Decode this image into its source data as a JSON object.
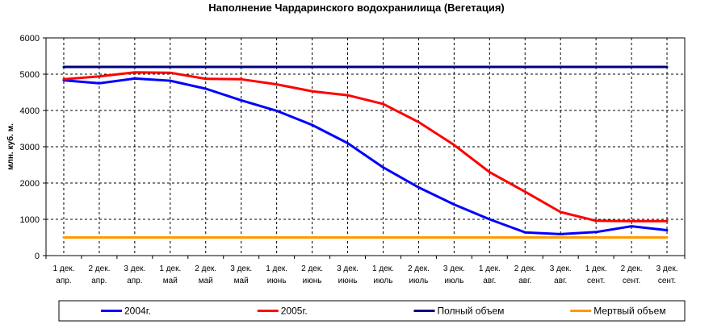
{
  "chart_data": {
    "type": "line",
    "title": "Наполнение Чардаринского водохранилища (Вегетация)",
    "ylabel": "млн. куб. м.",
    "xlabel": "",
    "ylim": [
      0,
      6000
    ],
    "yticks": [
      0,
      1000,
      2000,
      3000,
      4000,
      5000,
      6000
    ],
    "grid": true,
    "legend_position": "bottom",
    "categories": [
      [
        "1 дек.",
        "апр."
      ],
      [
        "2 дек.",
        "апр."
      ],
      [
        "3 дек.",
        "апр."
      ],
      [
        "1 дек.",
        "май"
      ],
      [
        "2 дек.",
        "май"
      ],
      [
        "3 дек.",
        "май"
      ],
      [
        "1 дек.",
        "июнь"
      ],
      [
        "2 дек.",
        "июнь"
      ],
      [
        "3 дек.",
        "июнь"
      ],
      [
        "1 дек.",
        "июль"
      ],
      [
        "2 дек.",
        "июль"
      ],
      [
        "3 дек.",
        "июль"
      ],
      [
        "1 дек.",
        "авг."
      ],
      [
        "2 дек.",
        "авг."
      ],
      [
        "3 дек.",
        "авг."
      ],
      [
        "1 дек.",
        "сент."
      ],
      [
        "2 дек.",
        "сент."
      ],
      [
        "3 дек.",
        "сент."
      ]
    ],
    "series": [
      {
        "name": "2004г.",
        "color": "#0000FF",
        "values": [
          4830,
          4750,
          4880,
          4820,
          4600,
          4280,
          3990,
          3600,
          3100,
          2430,
          1880,
          1410,
          1000,
          640,
          590,
          650,
          810,
          700
        ]
      },
      {
        "name": "2005г.",
        "color": "#FF0000",
        "values": [
          4860,
          4940,
          5050,
          5040,
          4870,
          4860,
          4720,
          4530,
          4420,
          4180,
          3680,
          3050,
          2300,
          1760,
          1200,
          960,
          950,
          950
        ]
      },
      {
        "name": "Полный объем",
        "color": "#000080",
        "values": [
          5200,
          5200,
          5200,
          5200,
          5200,
          5200,
          5200,
          5200,
          5200,
          5200,
          5200,
          5200,
          5200,
          5200,
          5200,
          5200,
          5200,
          5200
        ]
      },
      {
        "name": "Мертвый объем",
        "color": "#FF9900",
        "values": [
          500,
          500,
          500,
          500,
          500,
          500,
          500,
          500,
          500,
          500,
          500,
          500,
          500,
          500,
          500,
          500,
          500,
          500
        ]
      }
    ]
  }
}
